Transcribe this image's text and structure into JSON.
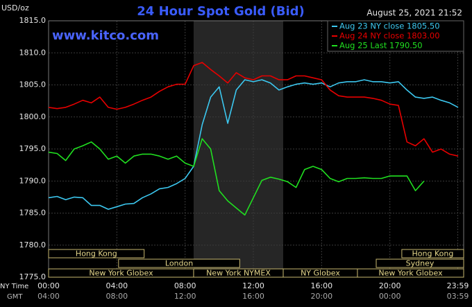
{
  "chart_data": {
    "type": "line",
    "title": "24 Hour Spot Gold (Bid)",
    "unit_label": "USD/oz",
    "watermark": "www.kitco.com",
    "timestamp": "August 25, 2021 21:52",
    "x_label": "NY Time",
    "x2_label": "GMT",
    "x": [
      0,
      0.5,
      1,
      1.5,
      2,
      2.5,
      3,
      3.5,
      4,
      4.5,
      5,
      5.5,
      6,
      6.5,
      7,
      7.5,
      8,
      8.5,
      9,
      9.5,
      10,
      10.5,
      11,
      11.5,
      12,
      12.5,
      13,
      13.5,
      14,
      14.5,
      15,
      15.5,
      16,
      16.5,
      17,
      17.5,
      18,
      18.5,
      19,
      19.5,
      20,
      20.5,
      21,
      21.5,
      22,
      22.5,
      23,
      23.5,
      24
    ],
    "series": [
      {
        "name": "Aug 23 NY close 1805.50",
        "color": "#3cc8f0",
        "values": [
          1787.4,
          1787.6,
          1787.1,
          1787.5,
          1787.4,
          1786.2,
          1786.2,
          1785.6,
          1786.0,
          1786.4,
          1786.5,
          1787.4,
          1788.0,
          1788.8,
          1789.0,
          1789.6,
          1790.4,
          1792.3,
          1798.8,
          1803.1,
          1804.7,
          1799.0,
          1804.2,
          1805.8,
          1805.5,
          1805.8,
          1805.3,
          1804.2,
          1804.7,
          1805.1,
          1805.3,
          1805.1,
          1805.3,
          1804.7,
          1805.3,
          1805.5,
          1805.5,
          1805.8,
          1805.5,
          1805.5,
          1805.3,
          1805.5,
          1804.2,
          1803.1,
          1802.9,
          1803.1,
          1802.6,
          1802.2,
          1801.5
        ]
      },
      {
        "name": "Aug 24 NY close 1803.00",
        "color": "#e80000",
        "values": [
          1801.5,
          1801.3,
          1801.5,
          1802.0,
          1802.6,
          1802.2,
          1803.1,
          1801.5,
          1801.2,
          1801.5,
          1802.0,
          1802.6,
          1803.1,
          1804.0,
          1804.7,
          1805.1,
          1805.1,
          1808.0,
          1808.5,
          1807.4,
          1806.4,
          1805.3,
          1806.9,
          1806.1,
          1805.8,
          1806.4,
          1806.4,
          1805.8,
          1805.8,
          1806.4,
          1806.4,
          1806.1,
          1805.8,
          1804.2,
          1803.3,
          1803.1,
          1803.1,
          1803.1,
          1802.9,
          1802.6,
          1802.0,
          1801.8,
          1796.1,
          1795.5,
          1796.6,
          1794.5,
          1795.0,
          1794.2,
          1793.9
        ]
      },
      {
        "name": "Aug 25 Last 1790.50",
        "color": "#20e020",
        "values": [
          1794.5,
          1794.3,
          1793.2,
          1795.0,
          1795.5,
          1796.1,
          1795.0,
          1793.4,
          1793.9,
          1792.8,
          1793.9,
          1794.2,
          1794.2,
          1793.9,
          1793.4,
          1793.9,
          1792.8,
          1792.3,
          1796.6,
          1795.0,
          1788.5,
          1786.9,
          1785.8,
          1784.7,
          1787.4,
          1790.1,
          1790.6,
          1790.3,
          1789.9,
          1789.0,
          1791.8,
          1792.3,
          1791.8,
          1790.4,
          1789.9,
          1790.4,
          1790.4,
          1790.5,
          1790.4,
          1790.4,
          1790.8,
          1790.8,
          1790.8,
          1788.5,
          1790.0,
          null,
          null,
          null,
          null
        ]
      }
    ],
    "xlim": [
      0,
      24
    ],
    "xticks": [
      {
        "value": 0,
        "label": "00:00"
      },
      {
        "value": 4,
        "label": "04:00"
      },
      {
        "value": 8,
        "label": "08:00"
      },
      {
        "value": 12,
        "label": "12:00"
      },
      {
        "value": 16,
        "label": "16:00"
      },
      {
        "value": 20,
        "label": "20:00"
      },
      {
        "value": 23.98,
        "label": "23:59"
      }
    ],
    "gmt_ticks": [
      "04:00",
      "08:00",
      "12:00",
      "16:00",
      "20:00",
      "00:00",
      "03:59"
    ],
    "ylim": [
      1775,
      1815
    ],
    "yticks": [
      {
        "value": 1775,
        "label": "1775.0"
      },
      {
        "value": 1780,
        "label": "1780.0"
      },
      {
        "value": 1785,
        "label": "1785.0"
      },
      {
        "value": 1790,
        "label": "1790.0"
      },
      {
        "value": 1795,
        "label": "1795.0"
      },
      {
        "value": 1800,
        "label": "1800.0"
      },
      {
        "value": 1805,
        "label": "1805.0"
      },
      {
        "value": 1810,
        "label": "1810.0"
      },
      {
        "value": 1815,
        "label": "1815.0"
      }
    ],
    "grid": true,
    "legend": "upper right",
    "shade": [
      8.5,
      13.75
    ],
    "sessions": [
      [
        {
          "name": "Hong Kong",
          "start": 0,
          "end": 5.6
        },
        {
          "name": "Hong Kong",
          "start": 20.7,
          "end": 24
        }
      ],
      [
        {
          "name": "London",
          "start": 4.1,
          "end": 11.2
        },
        {
          "name": "Sydney",
          "start": 19.2,
          "end": 24
        }
      ],
      [
        {
          "name": "New York Globex",
          "start": 0,
          "end": 8.5
        },
        {
          "name": "New York NYMEX",
          "start": 8.5,
          "end": 13.75
        },
        {
          "name": "NY Globex",
          "start": 13.75,
          "end": 18.1
        },
        {
          "name": "New York Globex",
          "start": 18.1,
          "end": 24
        }
      ]
    ]
  }
}
